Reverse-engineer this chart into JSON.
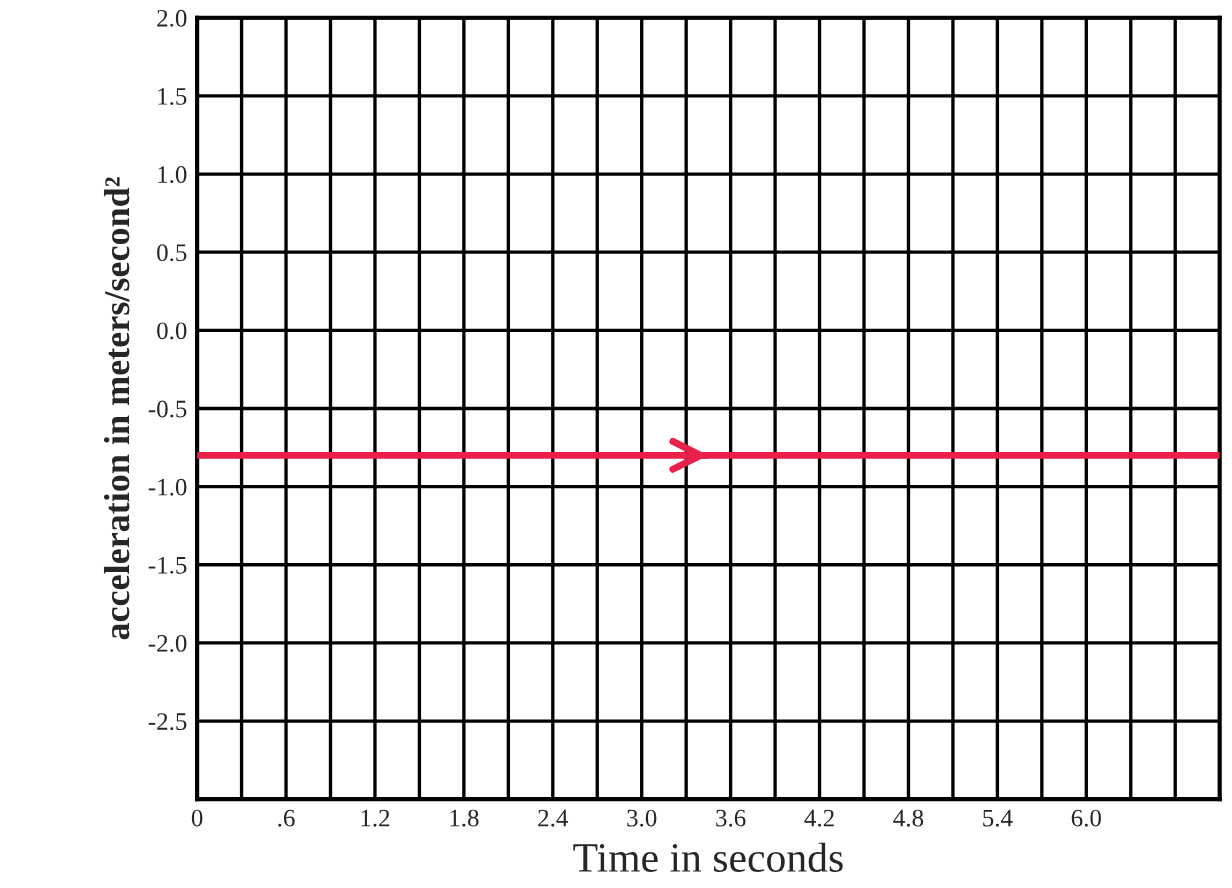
{
  "chart_data": {
    "type": "line",
    "xlabel": "Time in seconds",
    "ylabel": "acceleration in meters/second²",
    "x": [
      0,
      6.9
    ],
    "series": [
      {
        "color": "#e8204a",
        "values": [
          -0.8,
          -0.8
        ]
      }
    ],
    "xlim": [
      0,
      6.9
    ],
    "xticks": [
      0,
      {
        "value": 0.3,
        "label": null
      },
      {
        "value": 0.6,
        "label": ".6"
      },
      {
        "value": 0.9,
        "label": null
      },
      1.2,
      {
        "value": 1.5,
        "label": null
      },
      1.8,
      {
        "value": 2.1,
        "label": null
      },
      2.4,
      {
        "value": 2.7,
        "label": null
      },
      {
        "value": 3.0,
        "label": "3.0"
      },
      {
        "value": 3.3,
        "label": null
      },
      3.6,
      {
        "value": 3.9,
        "label": null
      },
      4.2,
      {
        "value": 4.5,
        "label": null
      },
      4.8,
      {
        "value": 5.1,
        "label": null
      },
      5.4,
      {
        "value": 5.7,
        "label": null
      },
      {
        "value": 6.0,
        "label": "6.0"
      },
      {
        "value": 6.3,
        "label": null
      },
      {
        "value": 6.6,
        "label": null
      },
      {
        "value": 6.9,
        "label": null
      }
    ],
    "ylim": [
      -3.0,
      2.0
    ],
    "yticks": [
      {
        "value": -3.0,
        "label": null
      },
      -2.5,
      {
        "value": -2.0,
        "label": "-2.0"
      },
      -1.5,
      {
        "value": -1.0,
        "label": "-1.0"
      },
      -0.5,
      {
        "value": 0.0,
        "label": "0.0"
      },
      0.5,
      {
        "value": 1.0,
        "label": "1.0"
      },
      1.5,
      {
        "value": 2.0,
        "label": "2.0"
      }
    ],
    "grid": true,
    "marker": "none",
    "line_style": "solid"
  }
}
